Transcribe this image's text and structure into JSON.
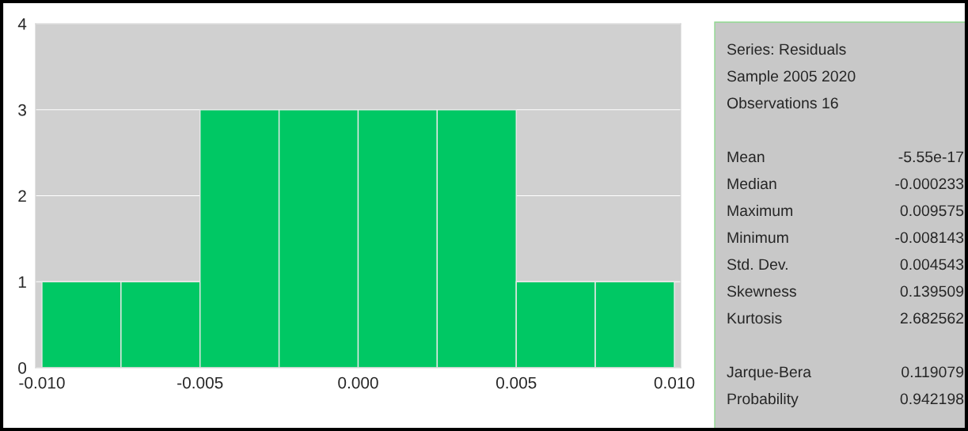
{
  "chart_data": {
    "type": "histogram",
    "bins": [
      -0.01,
      -0.0075,
      -0.005,
      -0.0025,
      0.0,
      0.0025,
      0.005,
      0.0075,
      0.01
    ],
    "values": [
      1,
      1,
      3,
      3,
      3,
      3,
      1,
      1
    ],
    "color": "#00c864",
    "xlim": [
      -0.0102,
      0.0102
    ],
    "xticks": [
      {
        "value": -0.01,
        "label": "-0.010"
      },
      {
        "value": -0.005,
        "label": "-0.005"
      },
      {
        "value": 0.0,
        "label": "0.000"
      },
      {
        "value": 0.005,
        "label": "0.005"
      },
      {
        "value": 0.01,
        "label": "0.010"
      }
    ],
    "ylim": [
      0,
      4
    ],
    "yticks": [
      0,
      1,
      2,
      3,
      4
    ],
    "grid": "y",
    "annotations": [
      "Series: Residuals",
      "Sample 2005 2020",
      "Observations 16",
      "Mean",
      "-5.55e-17",
      "Median",
      "-0.000233",
      "Maximum",
      "0.009575",
      "Minimum",
      "-0.008143",
      "Std. Dev.",
      "0.004543",
      "Skewness",
      "0.139509",
      "Kurtosis",
      "2.682562",
      "Jarque-Bera",
      "0.119079",
      "Probability",
      "0.942198"
    ]
  }
}
